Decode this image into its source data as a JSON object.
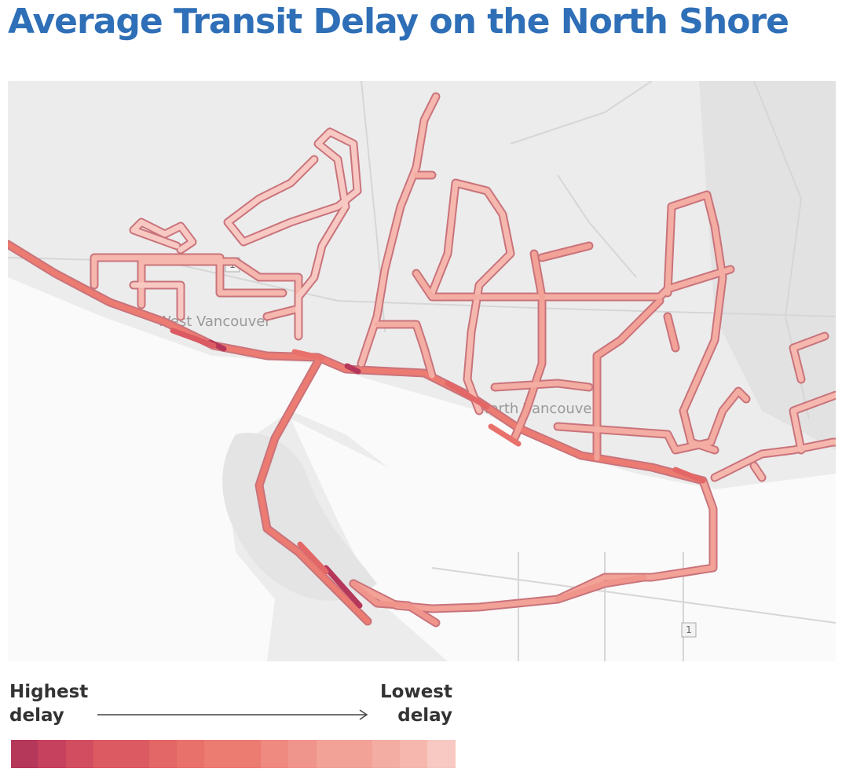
{
  "title": "Average Transit Delay on the North Shore",
  "map": {
    "labels": [
      "West Vancouver",
      "North Vancouver"
    ],
    "route_shields": [
      "1",
      "1"
    ]
  },
  "legend": {
    "start": "Highest delay",
    "end": "Lowest delay",
    "colors": [
      "#b5375a",
      "#c5415d",
      "#d24d60",
      "#dc5a62",
      "#e36766",
      "#e8716b",
      "#ec7b72",
      "#ee8a80",
      "#f0958b",
      "#f2a297",
      "#f4ada2",
      "#f6b8ae",
      "#f8c9c2"
    ]
  }
}
